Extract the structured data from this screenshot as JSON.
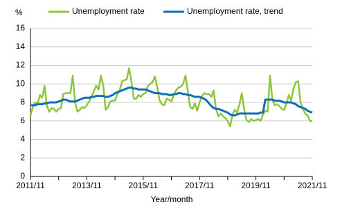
{
  "chart_data": {
    "type": "line",
    "y_label": "%",
    "x_label": "Year/month",
    "categories": [
      "2011/11",
      null,
      null,
      null,
      null,
      null,
      null,
      null,
      null,
      null,
      null,
      null,
      null,
      null,
      null,
      null,
      null,
      null,
      null,
      null,
      null,
      null,
      null,
      null,
      "2013/11",
      null,
      null,
      null,
      null,
      null,
      null,
      null,
      null,
      null,
      null,
      null,
      null,
      null,
      null,
      null,
      null,
      null,
      null,
      null,
      null,
      null,
      null,
      null,
      "2015/11",
      null,
      null,
      null,
      null,
      null,
      null,
      null,
      null,
      null,
      null,
      null,
      null,
      null,
      null,
      null,
      null,
      null,
      null,
      null,
      null,
      null,
      null,
      null,
      "2017/11",
      null,
      null,
      null,
      null,
      null,
      null,
      null,
      null,
      null,
      null,
      null,
      null,
      null,
      null,
      null,
      null,
      null,
      null,
      null,
      null,
      null,
      null,
      null,
      "2019/11",
      null,
      null,
      null,
      null,
      null,
      null,
      null,
      null,
      null,
      null,
      null,
      null,
      null,
      null,
      null,
      null,
      null,
      null,
      null,
      null,
      null,
      null,
      null,
      "2021/11"
    ],
    "series": [
      {
        "name": "Unemployment rate",
        "color": "#8cc63e",
        "values": [
          6.6,
          7.5,
          8.0,
          7.8,
          8.8,
          8.5,
          9.8,
          7.6,
          7.0,
          7.4,
          7.3,
          7.0,
          7.3,
          7.4,
          8.9,
          9.0,
          9.0,
          9.0,
          10.9,
          8.0,
          7.0,
          7.2,
          7.5,
          7.4,
          7.7,
          8.1,
          8.6,
          9.2,
          9.8,
          9.4,
          10.9,
          9.8,
          7.2,
          7.5,
          8.1,
          8.2,
          8.2,
          8.9,
          9.3,
          10.3,
          10.4,
          10.5,
          11.7,
          10.2,
          8.4,
          8.4,
          8.8,
          8.6,
          8.9,
          9.0,
          9.8,
          10.0,
          10.2,
          10.8,
          9.6,
          8.2,
          7.8,
          7.7,
          8.4,
          8.3,
          8.1,
          8.8,
          9.3,
          9.6,
          9.7,
          10.0,
          10.9,
          9.2,
          7.5,
          7.3,
          7.9,
          7.1,
          8.0,
          8.7,
          9.0,
          8.9,
          8.9,
          8.6,
          9.3,
          7.3,
          6.5,
          6.8,
          6.5,
          6.3,
          6.0,
          5.4,
          6.7,
          7.2,
          6.9,
          7.8,
          9.0,
          7.2,
          6.1,
          5.9,
          6.2,
          6.0,
          6.1,
          6.2,
          6.0,
          6.7,
          7.1,
          7.0,
          10.9,
          8.3,
          7.7,
          7.8,
          7.6,
          7.3,
          7.2,
          7.9,
          8.8,
          8.2,
          9.5,
          10.2,
          10.3,
          8.0,
          7.3,
          6.8,
          6.6,
          6.0,
          6.0
        ]
      },
      {
        "name": "Unemployment rate, trend",
        "color": "#0e6eb8",
        "values": [
          7.7,
          7.7,
          7.7,
          7.8,
          7.8,
          7.8,
          7.9,
          7.9,
          8.0,
          8.0,
          8.0,
          8.0,
          8.1,
          8.2,
          8.3,
          8.3,
          8.2,
          8.1,
          8.1,
          8.1,
          8.2,
          8.3,
          8.4,
          8.5,
          8.5,
          8.5,
          8.6,
          8.6,
          8.7,
          8.7,
          8.7,
          8.7,
          8.6,
          8.6,
          8.7,
          8.8,
          9.0,
          9.1,
          9.2,
          9.3,
          9.4,
          9.5,
          9.6,
          9.6,
          9.5,
          9.5,
          9.4,
          9.4,
          9.4,
          9.4,
          9.3,
          9.2,
          9.1,
          9.0,
          9.0,
          9.0,
          8.9,
          8.9,
          8.9,
          8.8,
          8.8,
          8.9,
          8.9,
          9.0,
          9.0,
          8.9,
          8.9,
          8.8,
          8.8,
          8.7,
          8.6,
          8.6,
          8.6,
          8.5,
          8.4,
          8.2,
          7.9,
          7.6,
          7.4,
          7.3,
          7.3,
          7.2,
          7.1,
          7.0,
          6.9,
          6.7,
          6.6,
          6.6,
          6.7,
          6.8,
          6.8,
          6.8,
          6.8,
          6.8,
          6.8,
          6.8,
          6.8,
          6.8,
          6.9,
          6.9,
          8.3,
          8.3,
          8.3,
          8.3,
          8.2,
          8.2,
          8.2,
          8.1,
          8.0,
          8.0,
          8.0,
          8.0,
          7.9,
          7.8,
          7.6,
          7.5,
          7.4,
          7.3,
          7.1,
          7.0,
          6.9
        ]
      }
    ],
    "ylim": [
      0,
      16
    ],
    "yticks": [
      0,
      2,
      4,
      6,
      8,
      10,
      12,
      14,
      16
    ],
    "grid": true
  }
}
